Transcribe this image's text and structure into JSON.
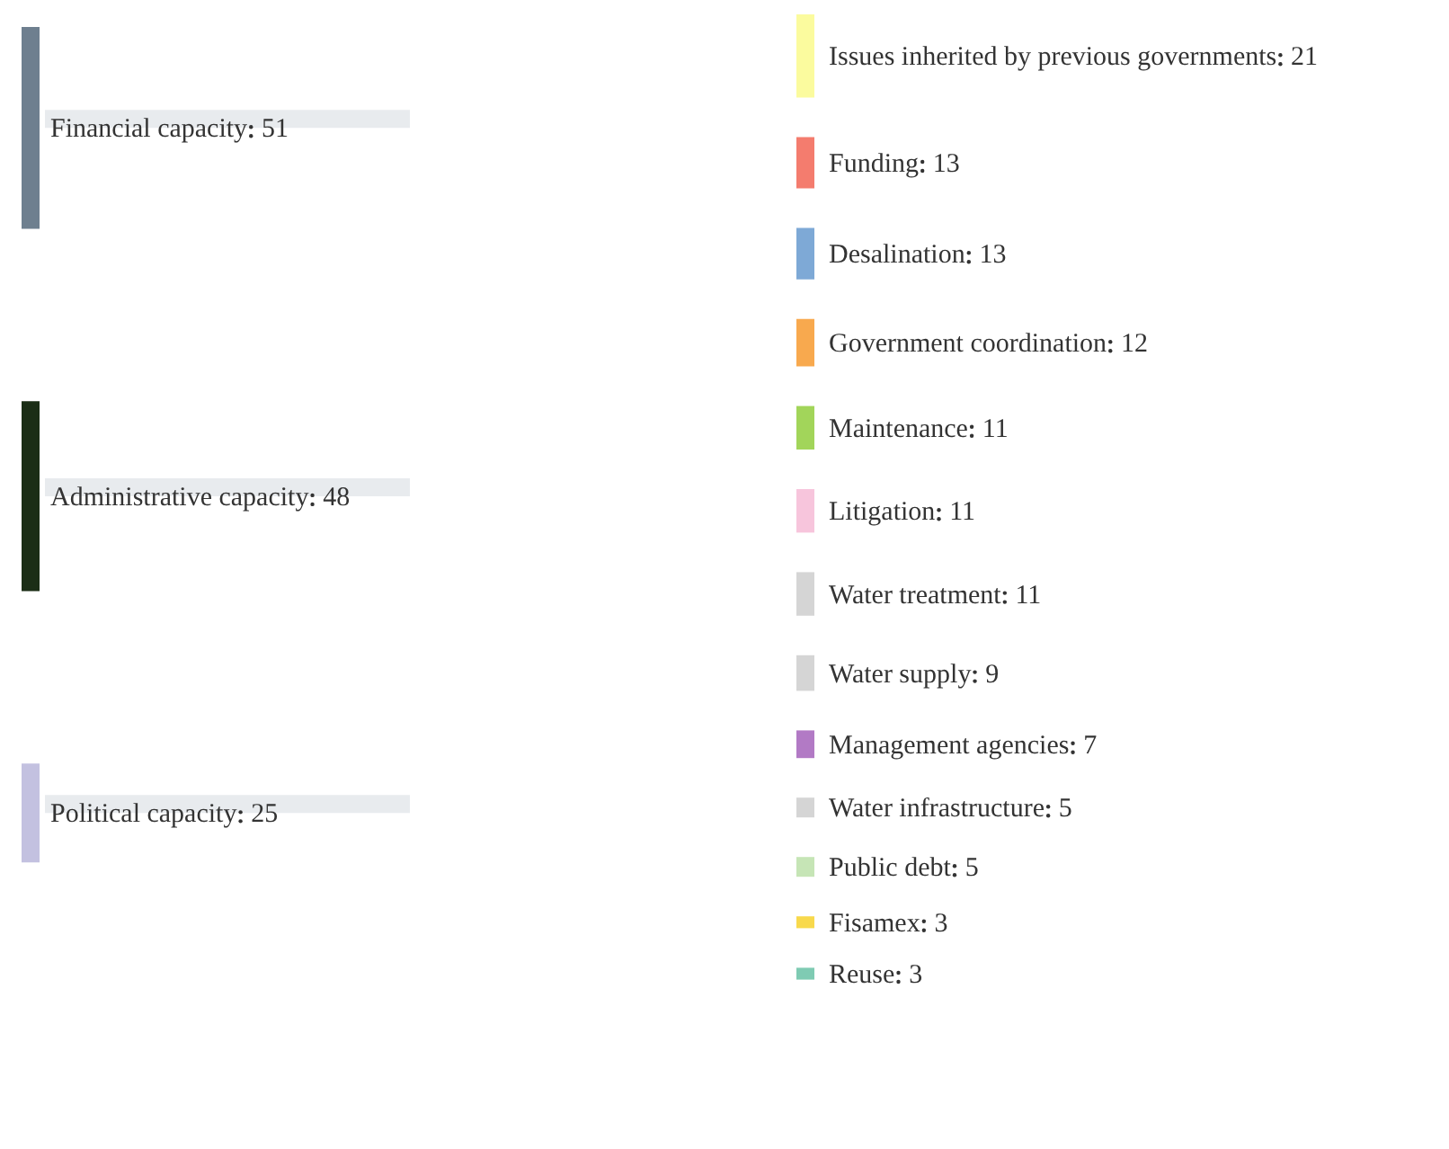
{
  "chart_data": [
    {
      "type": "other",
      "categories": [
        "Financial capacity",
        "Administrative capacity",
        "Political capacity"
      ],
      "values": [
        51,
        48,
        25
      ],
      "data_labels": true,
      "colors": [
        "#6e7f8f",
        "#1b2e16",
        "#c3c1e0"
      ]
    },
    {
      "type": "other",
      "categories": [
        "Issues inherited by previous governments",
        "Funding",
        "Desalination",
        "Government coordination",
        "Maintenance",
        "Litigation",
        "Water treatment",
        "Water supply",
        "Management agencies",
        "Water infrastructure",
        "Public debt",
        "Fisamex",
        "Reuse"
      ],
      "values": [
        21,
        13,
        13,
        12,
        11,
        11,
        11,
        9,
        7,
        5,
        5,
        3,
        3
      ],
      "data_labels": true,
      "colors": [
        "#fbfb9e",
        "#f47c6e",
        "#7ea9d6",
        "#f8a94e",
        "#a2d55a",
        "#f7c5dc",
        "#d5d5d5",
        "#d5d5d5",
        "#b27ac5",
        "#d5d5d5",
        "#c6e5b6",
        "#f8d94c",
        "#7fcbb3"
      ]
    }
  ]
}
